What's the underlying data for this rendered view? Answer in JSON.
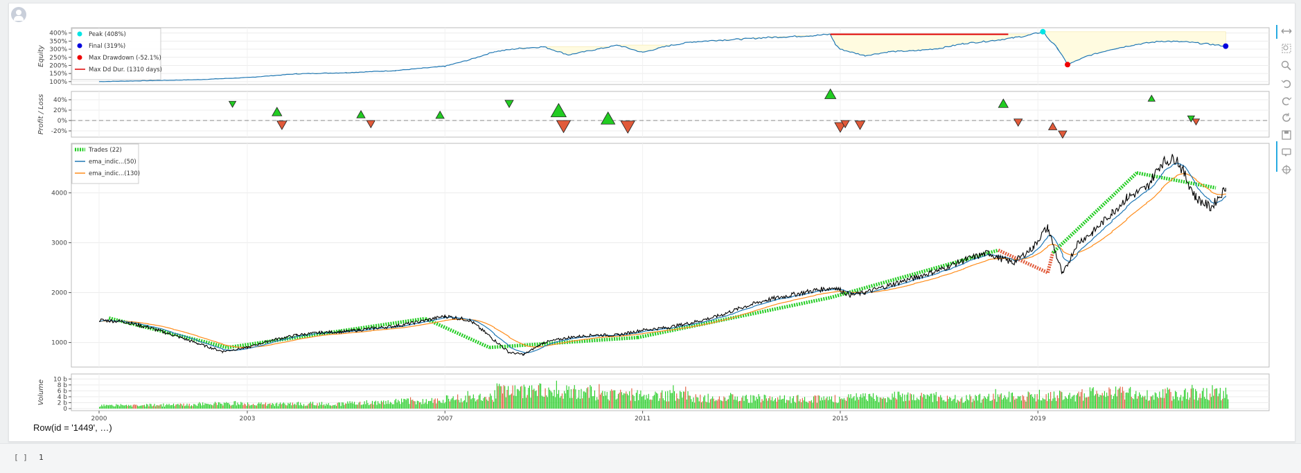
{
  "output": {
    "row_text": "Row(id = '1449', …)",
    "next_cell_prompt": "[ ]",
    "next_cell_code": "1"
  },
  "colors": {
    "equity_line": "#1f77b4",
    "equity_fill": "#fffbe0",
    "peak": "#00e5e5",
    "final": "#0000dd",
    "max_drawdown": "#ee0000",
    "dd_duration": "#dd0000",
    "win": "#22cc22",
    "loss": "#e15a3a",
    "price": "#000000",
    "ema_fast": "#1f77b4",
    "ema_slow": "#ff8c1a"
  },
  "toolbar": {
    "icons": [
      "pan-icon",
      "box-zoom-icon",
      "wheel-zoom-icon",
      "undo-icon",
      "redo-icon",
      "reset-icon",
      "save-icon",
      "hover-icon",
      "crosshair-icon"
    ]
  },
  "chart_data": [
    {
      "id": "equity",
      "type": "line",
      "ylabel": "Equity",
      "yticks": [
        "100%",
        "150%",
        "200%",
        "250%",
        "300%",
        "350%",
        "400%"
      ],
      "ytick_values": [
        100,
        150,
        200,
        250,
        300,
        350,
        400
      ],
      "ylim": [
        95,
        420
      ],
      "legend": [
        {
          "label": "Peak (408%)",
          "type": "dot",
          "color": "#00e5e5"
        },
        {
          "label": "Final (319%)",
          "type": "dot",
          "color": "#0000dd"
        },
        {
          "label": "Max Drawdown (-52.1%)",
          "type": "dot",
          "color": "#ee0000"
        },
        {
          "label": "Max Dd Dur. (1310 days)",
          "type": "line",
          "color": "#dd0000"
        }
      ],
      "legend_position": "top-left",
      "x": [
        2000.0,
        2002.0,
        2003.0,
        2004.0,
        2005.0,
        2006.0,
        2007.0,
        2007.5,
        2008.0,
        2008.5,
        2009.0,
        2009.5,
        2010.0,
        2010.5,
        2011.0,
        2011.5,
        2012.0,
        2012.5,
        2013.0,
        2013.5,
        2014.0,
        2014.5,
        2014.8,
        2014.9,
        2015.0,
        2015.5,
        2016.0,
        2016.5,
        2017.0,
        2017.5,
        2018.0,
        2018.5,
        2018.8,
        2019.1,
        2019.2,
        2019.4,
        2019.6,
        2020.0,
        2020.5,
        2021.0,
        2021.5,
        2022.0,
        2022.5,
        2022.8
      ],
      "y": [
        100,
        112,
        125,
        148,
        155,
        168,
        195,
        235,
        285,
        305,
        315,
        265,
        295,
        325,
        280,
        320,
        345,
        355,
        362,
        372,
        378,
        385,
        392,
        330,
        300,
        260,
        285,
        290,
        305,
        335,
        350,
        370,
        385,
        408,
        370,
        305,
        205,
        258,
        300,
        330,
        350,
        345,
        330,
        319
      ],
      "peak": {
        "x": 2019.1,
        "y": 408,
        "label": "Peak (408%)"
      },
      "final": {
        "x": 2022.8,
        "y": 319,
        "label": "Final (319%)"
      },
      "max_drawdown": {
        "x": 2019.6,
        "y": 205,
        "label": "Max Drawdown (-52.1%)"
      },
      "max_dd_duration": {
        "x_start": 2014.8,
        "x_end": 2018.4,
        "y": 392,
        "label": "Max Dd Dur. (1310 days)"
      }
    },
    {
      "id": "profit-loss",
      "type": "scatter",
      "ylabel": "Profit / Loss",
      "yticks": [
        "-20%",
        "0%",
        "20%",
        "40%"
      ],
      "ytick_values": [
        -20,
        0,
        20,
        40
      ],
      "ylim": [
        -28,
        52
      ],
      "trades": [
        {
          "x": 2002.7,
          "y": 32,
          "size": 5,
          "dir": "down",
          "color": "#22cc22"
        },
        {
          "x": 2003.6,
          "y": 16,
          "size": 7,
          "dir": "up",
          "color": "#22cc22"
        },
        {
          "x": 2003.7,
          "y": -8,
          "size": 7,
          "dir": "down",
          "color": "#e15a3a"
        },
        {
          "x": 2005.3,
          "y": 11,
          "size": 6,
          "dir": "up",
          "color": "#22cc22"
        },
        {
          "x": 2005.5,
          "y": -6,
          "size": 6,
          "dir": "down",
          "color": "#e15a3a"
        },
        {
          "x": 2006.9,
          "y": 10,
          "size": 6,
          "dir": "up",
          "color": "#22cc22"
        },
        {
          "x": 2008.3,
          "y": 33,
          "size": 6,
          "dir": "down",
          "color": "#22cc22"
        },
        {
          "x": 2009.3,
          "y": 18,
          "size": 11,
          "dir": "up",
          "color": "#22cc22"
        },
        {
          "x": 2009.4,
          "y": -10,
          "size": 10,
          "dir": "down",
          "color": "#e15a3a"
        },
        {
          "x": 2010.3,
          "y": 3,
          "size": 10,
          "dir": "up",
          "color": "#22cc22"
        },
        {
          "x": 2010.7,
          "y": -11,
          "size": 10,
          "dir": "down",
          "color": "#e15a3a"
        },
        {
          "x": 2014.8,
          "y": 50,
          "size": 8,
          "dir": "up",
          "color": "#22cc22"
        },
        {
          "x": 2015.0,
          "y": -12,
          "size": 8,
          "dir": "down",
          "color": "#e15a3a"
        },
        {
          "x": 2015.1,
          "y": -6,
          "size": 6,
          "dir": "down",
          "color": "#e15a3a"
        },
        {
          "x": 2015.4,
          "y": -8,
          "size": 7,
          "dir": "down",
          "color": "#e15a3a"
        },
        {
          "x": 2018.3,
          "y": 32,
          "size": 7,
          "dir": "up",
          "color": "#22cc22"
        },
        {
          "x": 2018.6,
          "y": -3,
          "size": 6,
          "dir": "down",
          "color": "#e15a3a"
        },
        {
          "x": 2019.3,
          "y": -12,
          "size": 6,
          "dir": "up",
          "color": "#e15a3a"
        },
        {
          "x": 2019.5,
          "y": -26,
          "size": 6,
          "dir": "down",
          "color": "#e15a3a"
        },
        {
          "x": 2021.3,
          "y": 42,
          "size": 5,
          "dir": "up",
          "color": "#22cc22"
        },
        {
          "x": 2022.1,
          "y": 4,
          "size": 5,
          "dir": "down",
          "color": "#22cc22"
        },
        {
          "x": 2022.2,
          "y": -2,
          "size": 5,
          "dir": "down",
          "color": "#e15a3a"
        }
      ]
    },
    {
      "id": "price",
      "type": "line",
      "yticks": [
        "1000",
        "2000",
        "3000",
        "4000"
      ],
      "ytick_values": [
        1000,
        2000,
        3000,
        4000
      ],
      "ylim": [
        550,
        4950
      ],
      "legend": [
        {
          "label": "Trades (22)",
          "type": "dash",
          "color": "#22cc22"
        },
        {
          "label": "ema_indic...(50)",
          "type": "line",
          "color": "#1f77b4"
        },
        {
          "label": "ema_indic...(130)",
          "type": "line",
          "color": "#ff8c1a"
        }
      ],
      "legend_position": "top-left",
      "x": [
        2000.0,
        2000.5,
        2001.0,
        2001.5,
        2002.0,
        2002.5,
        2003.0,
        2003.5,
        2004.0,
        2004.5,
        2005.0,
        2005.5,
        2006.0,
        2006.5,
        2007.0,
        2007.5,
        2008.0,
        2008.3,
        2008.6,
        2009.0,
        2009.5,
        2010.0,
        2010.5,
        2011.0,
        2011.5,
        2012.0,
        2012.5,
        2013.0,
        2013.5,
        2014.0,
        2014.5,
        2014.9,
        2015.2,
        2015.5,
        2016.0,
        2016.5,
        2017.0,
        2017.5,
        2018.0,
        2018.2,
        2018.5,
        2018.9,
        2019.1,
        2019.2,
        2019.5,
        2019.8,
        2020.1,
        2020.5,
        2020.8,
        2021.2,
        2021.5,
        2021.8,
        2022.2,
        2022.5,
        2022.8
      ],
      "y": [
        1450,
        1420,
        1300,
        1150,
        980,
        820,
        900,
        1050,
        1150,
        1200,
        1220,
        1280,
        1330,
        1420,
        1530,
        1450,
        1050,
        800,
        760,
        1000,
        1100,
        1150,
        1150,
        1250,
        1300,
        1400,
        1520,
        1700,
        1850,
        1950,
        2050,
        2100,
        1950,
        2000,
        2150,
        2300,
        2450,
        2650,
        2800,
        2700,
        2600,
        2900,
        3200,
        3300,
        2350,
        3000,
        3200,
        3600,
        3900,
        4100,
        4600,
        4700,
        3900,
        3700,
        4100
      ],
      "trades": [
        {
          "x0": 2000.2,
          "y0": 1490,
          "x1": 2002.6,
          "y1": 900,
          "color": "#22cc22"
        },
        {
          "x0": 2002.6,
          "y0": 900,
          "x1": 2006.6,
          "y1": 1480,
          "color": "#22cc22"
        },
        {
          "x0": 2006.6,
          "y0": 1480,
          "x1": 2007.9,
          "y1": 900,
          "color": "#22cc22"
        },
        {
          "x0": 2007.9,
          "y0": 900,
          "x1": 2010.9,
          "y1": 1100,
          "color": "#22cc22"
        },
        {
          "x0": 2010.9,
          "y0": 1100,
          "x1": 2014.8,
          "y1": 1900,
          "color": "#22cc22"
        },
        {
          "x0": 2014.8,
          "y0": 1900,
          "x1": 2018.2,
          "y1": 2850,
          "color": "#22cc22"
        },
        {
          "x0": 2018.2,
          "y0": 2850,
          "x1": 2019.2,
          "y1": 2400,
          "color": "#e15a3a"
        },
        {
          "x0": 2019.2,
          "y0": 2400,
          "x1": 2019.3,
          "y1": 2800,
          "color": "#e15a3a"
        },
        {
          "x0": 2019.3,
          "y0": 2800,
          "x1": 2021.0,
          "y1": 4400,
          "color": "#22cc22"
        },
        {
          "x0": 2021.0,
          "y0": 4400,
          "x1": 2022.6,
          "y1": 4100,
          "color": "#22cc22"
        }
      ]
    },
    {
      "id": "volume",
      "type": "bar",
      "ylabel": "Volume",
      "yticks": [
        "0",
        "2 b",
        "4 b",
        "6 b",
        "8 b",
        "10 b"
      ],
      "ytick_values": [
        0,
        2,
        4,
        6,
        8,
        10
      ],
      "ylim": [
        0,
        11
      ],
      "xticks": [
        "2000",
        "2003",
        "2007",
        "2011",
        "2015",
        "2019"
      ],
      "xtick_values": [
        2000,
        2003,
        2007,
        2011,
        2015,
        2019
      ],
      "x": [
        2000,
        2001,
        2002,
        2003,
        2004,
        2005,
        2006,
        2007,
        2008,
        2009,
        2010,
        2011,
        2012,
        2013,
        2014,
        2015,
        2016,
        2017,
        2018,
        2019,
        2020,
        2021,
        2022
      ],
      "values": [
        1.0,
        1.2,
        1.6,
        1.5,
        1.6,
        2.0,
        2.5,
        3.5,
        6.0,
        5.5,
        4.5,
        4.3,
        3.6,
        3.4,
        3.3,
        3.6,
        4.0,
        3.5,
        4.0,
        4.2,
        5.2,
        4.8,
        5.0
      ],
      "peak_values": [
        1.6,
        1.8,
        2.6,
        2.2,
        2.0,
        3.2,
        4.0,
        7.5,
        11.0,
        9.5,
        8.5,
        8.0,
        6.0,
        5.0,
        5.5,
        6.5,
        7.0,
        5.0,
        7.0,
        7.0,
        9.0,
        8.0,
        8.5
      ]
    }
  ]
}
